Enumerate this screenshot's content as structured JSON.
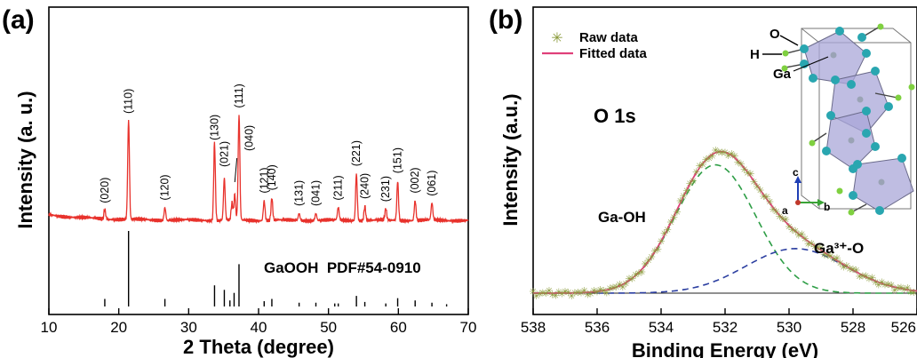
{
  "panels": {
    "a": {
      "label": "(a)"
    },
    "b": {
      "label": "(b)"
    }
  },
  "chart_data": [
    {
      "type": "line",
      "panel": "(a)",
      "xlabel": "2 Theta (degree)",
      "ylabel": "Intensity (a. u.)",
      "xlim": [
        10,
        70
      ],
      "xticks": [
        10,
        20,
        30,
        40,
        50,
        60,
        70
      ],
      "line_color": "#e8322c",
      "reference_label": "GaOOH  PDF#54-0910",
      "peaks": [
        {
          "x": 18.0,
          "h": 0.07,
          "hkl": "(020)"
        },
        {
          "x": 21.4,
          "h": 0.7,
          "hkl": "(110)"
        },
        {
          "x": 26.6,
          "h": 0.09,
          "hkl": "(120)"
        },
        {
          "x": 33.7,
          "h": 0.55,
          "hkl": "(130)"
        },
        {
          "x": 35.1,
          "h": 0.3,
          "hkl": "(021)"
        },
        {
          "x": 36.2,
          "h": 0.12,
          "hkl": ""
        },
        {
          "x": 36.6,
          "h": 0.18,
          "hkl": "(040)"
        },
        {
          "x": 37.2,
          "h": 0.74,
          "hkl": "(111)"
        },
        {
          "x": 40.8,
          "h": 0.14,
          "hkl": "(121)"
        },
        {
          "x": 41.9,
          "h": 0.16,
          "hkl": "(140)"
        },
        {
          "x": 45.8,
          "h": 0.05,
          "hkl": "(131)"
        },
        {
          "x": 48.2,
          "h": 0.05,
          "hkl": "(041)"
        },
        {
          "x": 51.4,
          "h": 0.09,
          "hkl": "(211)"
        },
        {
          "x": 54.0,
          "h": 0.33,
          "hkl": "(221)"
        },
        {
          "x": 55.2,
          "h": 0.1,
          "hkl": "(240)"
        },
        {
          "x": 58.2,
          "h": 0.08,
          "hkl": "(231)"
        },
        {
          "x": 59.9,
          "h": 0.28,
          "hkl": "(151)"
        },
        {
          "x": 62.4,
          "h": 0.14,
          "hkl": "(002)"
        },
        {
          "x": 64.8,
          "h": 0.12,
          "hkl": "(061)"
        }
      ],
      "reference_sticks": [
        {
          "x": 18.0,
          "h": 0.1
        },
        {
          "x": 21.4,
          "h": 1.0
        },
        {
          "x": 26.6,
          "h": 0.1
        },
        {
          "x": 33.7,
          "h": 0.28
        },
        {
          "x": 35.1,
          "h": 0.22
        },
        {
          "x": 35.9,
          "h": 0.08
        },
        {
          "x": 36.5,
          "h": 0.18
        },
        {
          "x": 37.2,
          "h": 0.56
        },
        {
          "x": 40.8,
          "h": 0.07
        },
        {
          "x": 41.9,
          "h": 0.1
        },
        {
          "x": 45.8,
          "h": 0.05
        },
        {
          "x": 48.2,
          "h": 0.05
        },
        {
          "x": 50.9,
          "h": 0.04
        },
        {
          "x": 51.4,
          "h": 0.04
        },
        {
          "x": 54.0,
          "h": 0.14
        },
        {
          "x": 55.2,
          "h": 0.06
        },
        {
          "x": 58.2,
          "h": 0.04
        },
        {
          "x": 59.9,
          "h": 0.11
        },
        {
          "x": 62.4,
          "h": 0.08
        },
        {
          "x": 64.8,
          "h": 0.05
        },
        {
          "x": 66.9,
          "h": 0.03
        }
      ]
    },
    {
      "type": "line",
      "panel": "(b)",
      "title": "O 1s",
      "xlabel": "Binding Energy (eV)",
      "ylabel": "Intensity (a.u.)",
      "xlim": [
        538,
        526
      ],
      "xticks": [
        538,
        536,
        534,
        532,
        530,
        528,
        526
      ],
      "xtick_labels": [
        "538",
        "536",
        "534",
        "532",
        "530",
        "528",
        "526"
      ],
      "legend": {
        "position": "top-left",
        "entries": [
          "Raw data",
          "Fitted data"
        ]
      },
      "series": [
        {
          "name": "Raw data",
          "style": "markers",
          "color": "#8a9a3a"
        },
        {
          "name": "Fitted data",
          "style": "line",
          "color": "#e0407a"
        }
      ],
      "components": [
        {
          "label": "Ga-OH",
          "center": 532.3,
          "height": 1.0,
          "sigma": 1.25,
          "color": "#2e9e46",
          "dash": true
        },
        {
          "label": "Ga³⁺-O",
          "center": 529.8,
          "height": 0.33,
          "sigma": 1.55,
          "color": "#2b3ea0",
          "dash": true
        }
      ],
      "inset": {
        "labels": [
          "O",
          "H",
          "Ga"
        ],
        "axes": [
          "c",
          "a",
          "b"
        ]
      }
    }
  ]
}
